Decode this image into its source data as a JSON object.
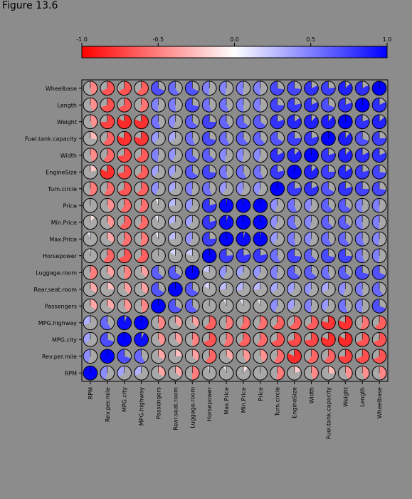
{
  "window": {
    "title": "Figure 13.6"
  },
  "chart_data": {
    "type": "heatmap",
    "subtype": "pie-correlation-matrix",
    "title": "",
    "row_labels": [
      "Wheelbase",
      "Length",
      "Weight",
      "Fuel.tank.capacity",
      "Width",
      "EngineSize",
      "Turn.circle",
      "Price",
      "Min.Price",
      "Max.Price",
      "Horsepower",
      "Luggage.room",
      "Rear.seat.room",
      "Passengers",
      "MPG.highway",
      "MPG.city",
      "Rev.per.mile",
      "RPM"
    ],
    "col_labels": [
      "RPM",
      "Rev.per.mile",
      "MPG.city",
      "MPG.highway",
      "Passengers",
      "Rear.seat.room",
      "Luggage.room",
      "Horsepower",
      "Max.Price",
      "Min.Price",
      "Price",
      "Turn.circle",
      "EngineSize",
      "Width",
      "Fuel.tank.capacity",
      "Weight",
      "Length",
      "Wheelbase"
    ],
    "variables": [
      "RPM",
      "Rev.per.mile",
      "MPG.city",
      "MPG.highway",
      "Passengers",
      "Rear.seat.room",
      "Luggage.room",
      "Horsepower",
      "Max.Price",
      "Min.Price",
      "Price",
      "Turn.circle",
      "EngineSize",
      "Width",
      "Fuel.tank.capacity",
      "Weight",
      "Length",
      "Wheelbase"
    ],
    "correlations": [
      [
        1.0,
        0.45,
        0.36,
        0.31,
        -0.35,
        -0.34,
        -0.51,
        0.04,
        0.06,
        -0.11,
        -0.0,
        -0.52,
        -0.21,
        -0.46,
        -0.27,
        -0.43,
        -0.44,
        -0.47
      ],
      [
        0.45,
        1.0,
        0.7,
        0.59,
        -0.34,
        -0.25,
        -0.37,
        -0.6,
        -0.34,
        -0.41,
        -0.43,
        -0.58,
        -0.82,
        -0.6,
        -0.61,
        -0.74,
        -0.69,
        -0.67
      ],
      [
        0.36,
        0.7,
        1.0,
        0.94,
        -0.42,
        -0.38,
        -0.49,
        -0.67,
        -0.56,
        -0.62,
        -0.59,
        -0.67,
        -0.71,
        -0.72,
        -0.81,
        -0.84,
        -0.67,
        -0.67
      ],
      [
        0.31,
        0.59,
        0.94,
        1.0,
        -0.47,
        -0.37,
        -0.37,
        -0.62,
        -0.52,
        -0.58,
        -0.56,
        -0.62,
        -0.63,
        -0.64,
        -0.79,
        -0.81,
        -0.54,
        -0.62
      ],
      [
        -0.35,
        -0.34,
        -0.42,
        -0.47,
        1.0,
        0.67,
        0.63,
        0.01,
        0.06,
        0.07,
        0.06,
        0.44,
        0.37,
        0.49,
        0.4,
        0.55,
        0.49,
        0.69
      ],
      [
        -0.34,
        -0.25,
        -0.38,
        -0.37,
        0.67,
        1.0,
        0.66,
        0.16,
        0.26,
        0.29,
        0.27,
        0.34,
        0.38,
        0.42,
        0.34,
        0.45,
        0.51,
        0.59
      ],
      [
        -0.51,
        -0.37,
        -0.49,
        -0.37,
        0.63,
        0.66,
        1.0,
        0.21,
        0.42,
        0.37,
        0.41,
        0.49,
        0.65,
        0.64,
        0.56,
        0.64,
        0.71,
        0.68
      ],
      [
        0.04,
        -0.6,
        -0.67,
        -0.62,
        0.01,
        0.16,
        0.21,
        1.0,
        0.76,
        0.79,
        0.79,
        0.56,
        0.73,
        0.64,
        0.71,
        0.74,
        0.55,
        0.49
      ],
      [
        0.06,
        -0.34,
        -0.56,
        -0.52,
        0.06,
        0.26,
        0.42,
        0.76,
        1.0,
        0.96,
        0.98,
        0.4,
        0.53,
        0.46,
        0.58,
        0.6,
        0.55,
        0.48
      ],
      [
        -0.11,
        -0.41,
        -0.62,
        -0.58,
        0.07,
        0.29,
        0.37,
        0.79,
        0.96,
        1.0,
        0.99,
        0.44,
        0.57,
        0.47,
        0.62,
        0.64,
        0.51,
        0.5
      ],
      [
        -0.0,
        -0.43,
        -0.59,
        -0.56,
        0.06,
        0.27,
        0.41,
        0.79,
        0.98,
        0.99,
        1.0,
        0.44,
        0.56,
        0.46,
        0.62,
        0.65,
        0.5,
        0.5
      ],
      [
        -0.52,
        -0.58,
        -0.67,
        -0.62,
        0.44,
        0.34,
        0.49,
        0.56,
        0.4,
        0.44,
        0.44,
        1.0,
        0.78,
        0.82,
        0.67,
        0.8,
        0.74,
        0.72
      ],
      [
        -0.21,
        -0.82,
        -0.71,
        -0.63,
        0.37,
        0.38,
        0.65,
        0.73,
        0.53,
        0.57,
        0.56,
        0.78,
        1.0,
        0.87,
        0.76,
        0.85,
        0.78,
        0.73
      ],
      [
        -0.46,
        -0.6,
        -0.72,
        -0.64,
        0.49,
        0.42,
        0.64,
        0.64,
        0.46,
        0.47,
        0.46,
        0.82,
        0.87,
        1.0,
        0.8,
        0.88,
        0.82,
        0.81
      ],
      [
        -0.27,
        -0.61,
        -0.81,
        -0.79,
        0.4,
        0.34,
        0.56,
        0.71,
        0.58,
        0.62,
        0.62,
        0.67,
        0.76,
        0.8,
        1.0,
        0.89,
        0.69,
        0.76
      ],
      [
        -0.43,
        -0.74,
        -0.84,
        -0.81,
        0.55,
        0.45,
        0.64,
        0.74,
        0.6,
        0.64,
        0.65,
        0.8,
        0.85,
        0.88,
        0.89,
        1.0,
        0.81,
        0.87
      ],
      [
        -0.44,
        -0.69,
        -0.67,
        -0.54,
        0.49,
        0.51,
        0.71,
        0.55,
        0.55,
        0.51,
        0.5,
        0.74,
        0.78,
        0.82,
        0.69,
        0.81,
        1.0,
        0.82
      ],
      [
        -0.47,
        -0.67,
        -0.67,
        -0.62,
        0.69,
        0.59,
        0.68,
        0.49,
        0.48,
        0.5,
        0.5,
        0.72,
        0.73,
        0.81,
        0.76,
        0.87,
        0.82,
        1.0
      ]
    ],
    "colorbar": {
      "ticks": [
        -1.0,
        -0.5,
        0.0,
        0.5,
        1.0
      ],
      "tick_labels": [
        "-1.0",
        "-0.5",
        "0.0",
        "0.5",
        "1.0"
      ],
      "low_color": "#ff0000",
      "mid_color": "#ffffff",
      "high_color": "#0000ff"
    },
    "xlim": [
      -1,
      1
    ],
    "grid": false,
    "legend": "top colorbar"
  }
}
